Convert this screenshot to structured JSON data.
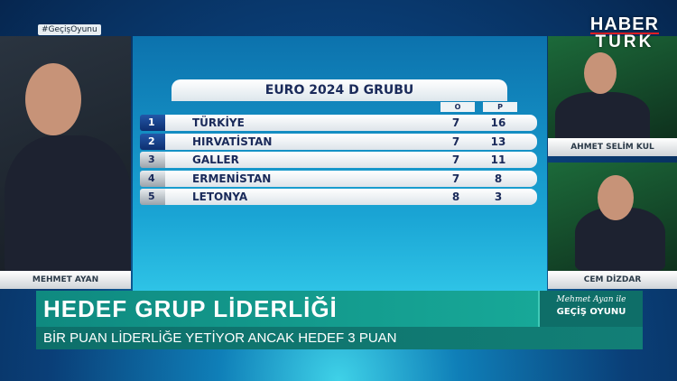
{
  "hashtag": "#GeçişOyunu",
  "logo": {
    "line1": "HABER",
    "line2": "TURK",
    "accent": "#e31e24"
  },
  "panels": {
    "left_name": "MEHMET AYAN",
    "right_top_name": "AHMET SELİM KUL",
    "right_bottom_name": "CEM DİZDAR"
  },
  "standings": {
    "title": "EURO 2024 D GRUBU",
    "col_played": "O",
    "col_points": "P",
    "rows": [
      {
        "rank": "1",
        "team": "TÜRKİYE",
        "played": "7",
        "points": "16",
        "qualified": true
      },
      {
        "rank": "2",
        "team": "HIRVATİSTAN",
        "played": "7",
        "points": "13",
        "qualified": true
      },
      {
        "rank": "3",
        "team": "GALLER",
        "played": "7",
        "points": "11",
        "qualified": false
      },
      {
        "rank": "4",
        "team": "ERMENİSTAN",
        "played": "7",
        "points": "8",
        "qualified": false
      },
      {
        "rank": "5",
        "team": "LETONYA",
        "played": "8",
        "points": "3",
        "qualified": false
      }
    ]
  },
  "lower_third": {
    "headline": "HEDEF GRUP LİDERLİĞİ",
    "subline": "BİR PUAN LİDERLİĞE YETİYOR ANCAK HEDEF 3 PUAN",
    "show_host": "Mehmet Ayan ile",
    "show_name": "GEÇİŞ OYUNU"
  }
}
